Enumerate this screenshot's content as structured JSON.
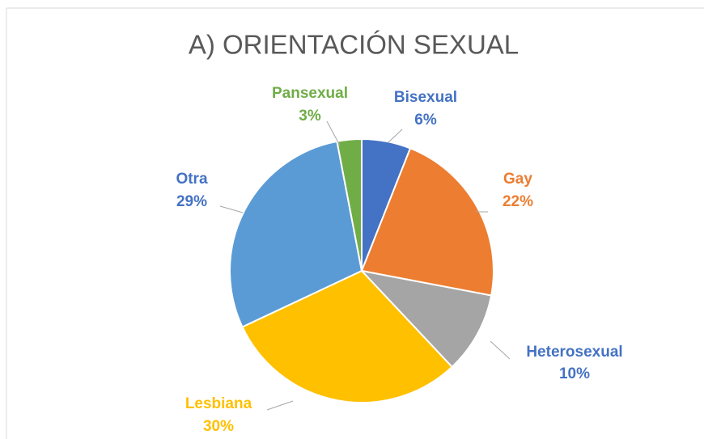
{
  "chart_data": {
    "type": "pie",
    "title": "A) ORIENTACIÓN SEXUAL",
    "categories": [
      "Bisexual",
      "Gay",
      "Heterosexual",
      "Lesbiana",
      "Otra",
      "Pansexual"
    ],
    "values": [
      6,
      22,
      10,
      30,
      29,
      3
    ],
    "value_labels": [
      "6%",
      "22%",
      "10%",
      "30%",
      "29%",
      "3%"
    ],
    "colors": [
      "#4472c4",
      "#ed7d31",
      "#a5a5a5",
      "#ffc000",
      "#5b9bd5",
      "#70ad47"
    ],
    "label_colors": [
      "#4472c4",
      "#ed7d31",
      "#4472c4",
      "#ffc000",
      "#4472c4",
      "#70ad47"
    ]
  }
}
